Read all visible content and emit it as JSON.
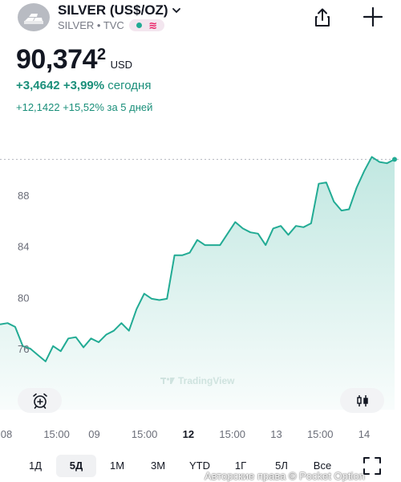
{
  "header": {
    "title": "SILVER (US$/OZ)",
    "subtitle": "SILVER • TVC",
    "logo_icon": "silver-bars-icon",
    "caret_icon": "chevron-down-icon",
    "share_icon": "share-icon",
    "add_icon": "plus-icon",
    "status_dot_color": "#22ab94",
    "pill_color": "#f3e6ef"
  },
  "quote": {
    "price_main": "90,374",
    "price_fraction": "2",
    "currency": "USD",
    "change_today_value": "+3,4642",
    "change_today_percent": "+3,99%",
    "change_today_period": "сегодня",
    "change_5d": "+12,1422 +15,52% за 5 дней",
    "positive_color": "#1a8f7a"
  },
  "chart_data": {
    "type": "area",
    "y_ticks": [
      "88",
      "84",
      "80",
      "76"
    ],
    "ylim": [
      73.5,
      92
    ],
    "x_ticks": [
      {
        "label": "08",
        "pos": 0,
        "bold": false
      },
      {
        "label": "15:00",
        "pos": 8,
        "bold": false
      },
      {
        "label": "09",
        "pos": 14,
        "bold": false
      },
      {
        "label": "15:00",
        "pos": 22,
        "bold": false
      },
      {
        "label": "12",
        "pos": 29,
        "bold": true
      },
      {
        "label": "15:00",
        "pos": 36,
        "bold": false
      },
      {
        "label": "13",
        "pos": 43,
        "bold": false
      },
      {
        "label": "15:00",
        "pos": 50,
        "bold": false
      },
      {
        "label": "14",
        "pos": 57,
        "bold": false
      }
    ],
    "series": [
      {
        "values": [
          77.9,
          78.0,
          77.7,
          76.2,
          76.0,
          75.5,
          75.0,
          76.2,
          75.8,
          76.8,
          76.9,
          76.1,
          76.8,
          76.5,
          77.1,
          77.4,
          78.0,
          77.4,
          79.1,
          80.3,
          79.9,
          79.8,
          79.9,
          83.3,
          83.3,
          83.5,
          84.5,
          84.1,
          84.1,
          84.1,
          85.0,
          85.9,
          85.4,
          85.1,
          85.0,
          84.1,
          85.4,
          85.6,
          84.9,
          85.6,
          85.5,
          85.8,
          88.9,
          89.0,
          87.5,
          86.8,
          86.9,
          88.6,
          89.9,
          91.0,
          90.6,
          90.5,
          90.8
        ]
      }
    ],
    "reference_line": 90.8,
    "line_color": "#22ab94",
    "fill_color": "#22ab94",
    "watermark": "TradingView",
    "watermark_icon": "tradingview-logo-icon",
    "grid": false
  },
  "controls": {
    "alert_icon": "alarm-clock-plus-icon",
    "style_icon": "candlestick-icon",
    "fullscreen_icon": "fullscreen-icon"
  },
  "ranges": [
    {
      "label": "1Д",
      "active": false
    },
    {
      "label": "5Д",
      "active": true
    },
    {
      "label": "1М",
      "active": false
    },
    {
      "label": "3М",
      "active": false
    },
    {
      "label": "YTD",
      "active": false
    },
    {
      "label": "1Г",
      "active": false
    },
    {
      "label": "5Л",
      "active": false
    },
    {
      "label": "Все",
      "active": false
    }
  ],
  "footer": {
    "copyright": "Авторские права © Pocket Option"
  }
}
